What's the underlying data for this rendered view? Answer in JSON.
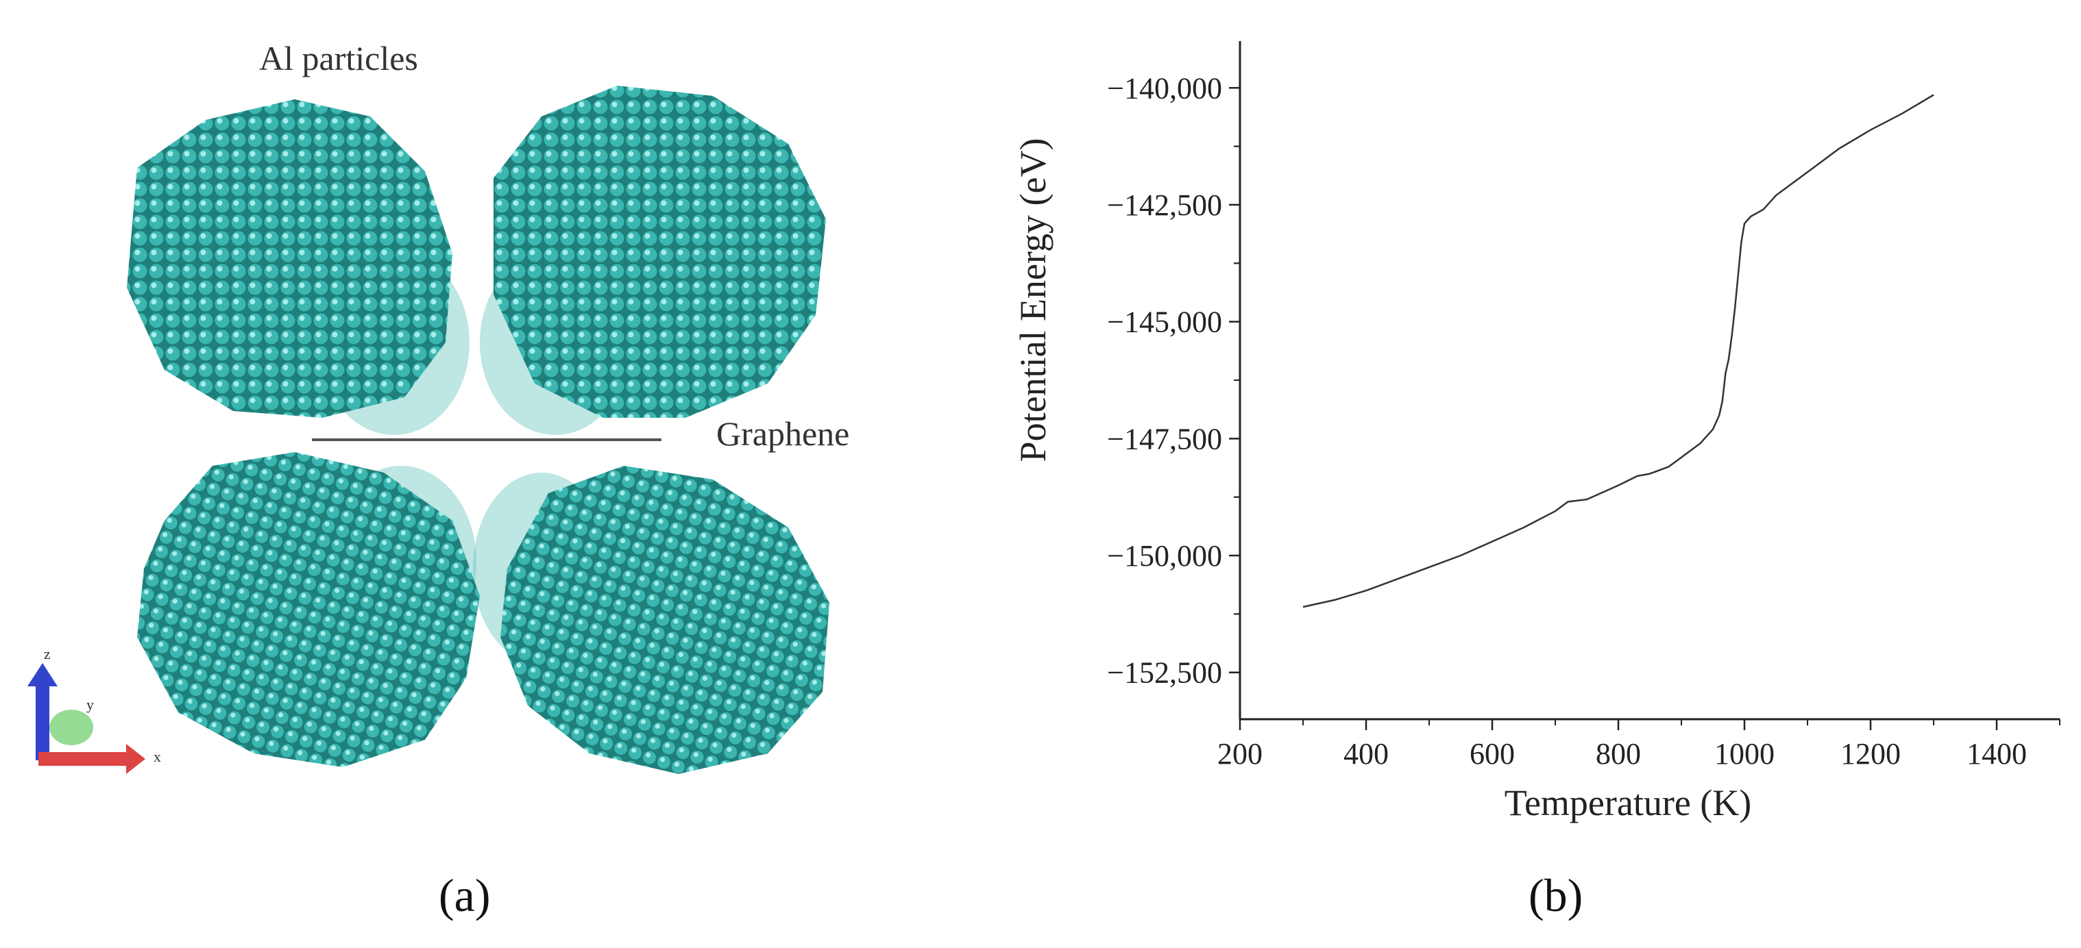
{
  "panel_a": {
    "particles_label": "Al particles",
    "graphene_label": "Graphene",
    "axis_labels": {
      "z": "z",
      "y": "y",
      "x": "x"
    },
    "letter": "(a)",
    "colors": {
      "atom": "#3bb6b0",
      "atom_highlight": "#a6ece8",
      "atom_shadow": "#1f7f7a",
      "graphene_line": "#555555"
    }
  },
  "panel_b": {
    "letter": "(b)"
  },
  "chart_data": {
    "type": "line",
    "title": "",
    "xlabel": "Temperature (K)",
    "ylabel": "Potential Energy (eV)",
    "xlim": [
      200,
      1500
    ],
    "ylim": [
      -153500,
      -139000
    ],
    "x_ticks": [
      200,
      400,
      600,
      800,
      1000,
      1200,
      1400
    ],
    "x_tick_labels": [
      "200",
      "400",
      "600",
      "800",
      "1000",
      "1200",
      "1400"
    ],
    "y_ticks": [
      -152500,
      -150000,
      -147500,
      -145000,
      -142500,
      -140000
    ],
    "y_tick_labels": [
      "−152,500",
      "−150,000",
      "−147,500",
      "−145,000",
      "−142,500",
      "−140,000"
    ],
    "grid": false,
    "series": [
      {
        "color": "#333333",
        "x": [
          300,
          350,
          400,
          450,
          500,
          550,
          600,
          650,
          700,
          720,
          750,
          800,
          830,
          850,
          880,
          900,
          930,
          950,
          960,
          965,
          970,
          975,
          980,
          985,
          990,
          995,
          1000,
          1010,
          1030,
          1050,
          1100,
          1150,
          1200,
          1250,
          1300
        ],
        "y": [
          -151100,
          -150950,
          -150750,
          -150500,
          -150250,
          -150000,
          -149700,
          -149400,
          -149050,
          -148850,
          -148800,
          -148500,
          -148300,
          -148250,
          -148100,
          -147900,
          -147600,
          -147300,
          -147000,
          -146700,
          -146100,
          -145800,
          -145300,
          -144700,
          -144000,
          -143300,
          -142900,
          -142750,
          -142600,
          -142300,
          -141800,
          -141300,
          -140900,
          -140550,
          -140150
        ]
      }
    ]
  }
}
